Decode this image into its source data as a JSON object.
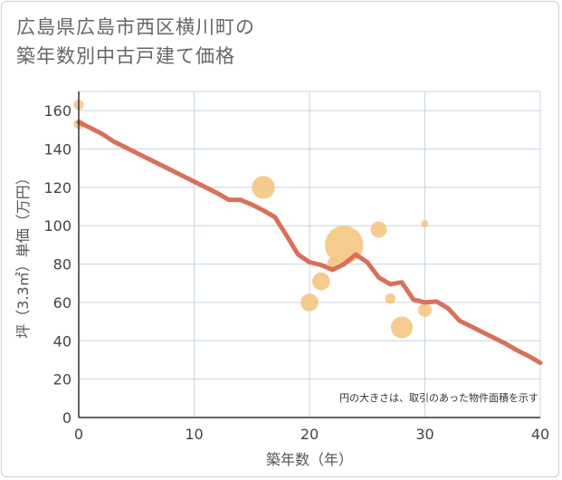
{
  "title_line1": "広島県広島市西区横川町の",
  "title_line2": "築年数別中古戸建て価格",
  "chart_data": {
    "type": "scatter",
    "title": "広島県広島市西区横川町の築年数別中古戸建て価格",
    "xlabel": "築年数（年）",
    "ylabel": "坪（3.3㎡）単価（万円）",
    "xlim": [
      0,
      40
    ],
    "ylim": [
      0,
      170
    ],
    "xticks": [
      0,
      10,
      20,
      30,
      40
    ],
    "yticks": [
      0,
      20,
      40,
      60,
      80,
      100,
      120,
      140,
      160
    ],
    "grid": true,
    "note": "円の大きさは、取引のあった物件面積を示す",
    "colors": {
      "line": "#d9705a",
      "bubble": "#f5c27a",
      "grid": "#c8d4e0",
      "axis": "#333333"
    },
    "series": [
      {
        "name": "trend",
        "type": "line",
        "points": [
          [
            0,
            154
          ],
          [
            1,
            151
          ],
          [
            2,
            148
          ],
          [
            3,
            144
          ],
          [
            4,
            141
          ],
          [
            5,
            138
          ],
          [
            6,
            135
          ],
          [
            7,
            132
          ],
          [
            8,
            129
          ],
          [
            9,
            126
          ],
          [
            10,
            123
          ],
          [
            11,
            120
          ],
          [
            12,
            117
          ],
          [
            13,
            113.5
          ],
          [
            14,
            113.5
          ],
          [
            15,
            111
          ],
          [
            16,
            108
          ],
          [
            17,
            104.5
          ],
          [
            18,
            95
          ],
          [
            19,
            85
          ],
          [
            20,
            81
          ],
          [
            21,
            79.5
          ],
          [
            22,
            77
          ],
          [
            23,
            80
          ],
          [
            24,
            85
          ],
          [
            25,
            81
          ],
          [
            26,
            73
          ],
          [
            27,
            69.5
          ],
          [
            28,
            70.5
          ],
          [
            29,
            61.5
          ],
          [
            30,
            60
          ],
          [
            31,
            60.5
          ],
          [
            32,
            57
          ],
          [
            33,
            50.5
          ],
          [
            34,
            47.5
          ],
          [
            35,
            44.5
          ],
          [
            36,
            41.5
          ],
          [
            37,
            38.5
          ],
          [
            38,
            35
          ],
          [
            39,
            32
          ],
          [
            40,
            28.5
          ]
        ]
      },
      {
        "name": "transactions",
        "type": "bubble",
        "points": [
          {
            "x": 0,
            "y": 163,
            "size": 2
          },
          {
            "x": 0,
            "y": 153,
            "size": 2
          },
          {
            "x": 16,
            "y": 120,
            "size": 10
          },
          {
            "x": 20,
            "y": 60,
            "size": 6
          },
          {
            "x": 21,
            "y": 71,
            "size": 6
          },
          {
            "x": 22,
            "y": 81,
            "size": 2
          },
          {
            "x": 23,
            "y": 90,
            "size": 28
          },
          {
            "x": 26,
            "y": 98,
            "size": 5
          },
          {
            "x": 27,
            "y": 62,
            "size": 2
          },
          {
            "x": 28,
            "y": 47,
            "size": 9
          },
          {
            "x": 30,
            "y": 56,
            "size": 3.5
          },
          {
            "x": 30,
            "y": 101,
            "size": 1
          }
        ]
      }
    ]
  }
}
